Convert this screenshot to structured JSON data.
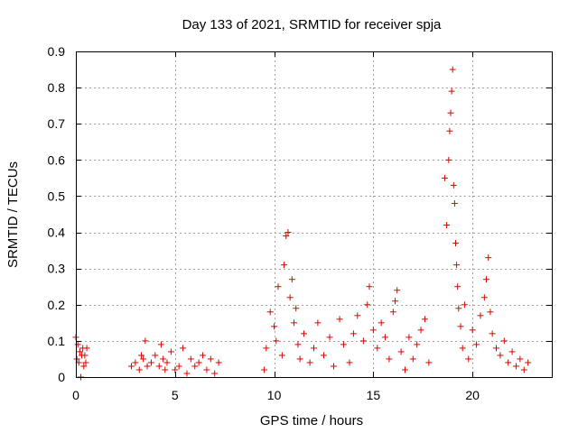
{
  "chart_data": {
    "type": "scatter",
    "title": "Day 133 of 2021, SRMTID for receiver spja",
    "xlabel": "GPS time / hours",
    "ylabel": "SRMTID / TECUs",
    "xlim": [
      0,
      24
    ],
    "ylim": [
      0,
      0.9
    ],
    "xticks": [
      0,
      5,
      10,
      15,
      20
    ],
    "xtick_labels": [
      "0",
      "5",
      "10",
      "15",
      "20"
    ],
    "yticks": [
      0,
      0.1,
      0.2,
      0.3,
      0.4,
      0.5,
      0.6,
      0.7,
      0.8,
      0.9
    ],
    "ytick_labels": [
      "0",
      "0.1",
      "0.2",
      "0.3",
      "0.4",
      "0.5",
      "0.6",
      "0.7",
      "0.8",
      "0.9"
    ],
    "grid": true,
    "marker": "+",
    "series": [
      {
        "name": "SRMTID",
        "color": "#e00000",
        "x": [
          0.0,
          0.05,
          0.1,
          0.15,
          0.2,
          0.25,
          0.3,
          0.35,
          0.4,
          0.45,
          0.5,
          0.55,
          2.8,
          3.0,
          3.2,
          3.3,
          3.4,
          3.5,
          3.6,
          3.8,
          4.0,
          4.2,
          4.3,
          4.4,
          4.5,
          4.6,
          4.8,
          5.0,
          5.2,
          5.4,
          5.6,
          5.8,
          6.0,
          6.2,
          6.4,
          6.6,
          6.8,
          7.0,
          7.2,
          9.5,
          9.6,
          9.8,
          10.0,
          10.1,
          10.2,
          10.4,
          10.5,
          10.6,
          10.7,
          10.8,
          10.9,
          11.0,
          11.1,
          11.2,
          11.3,
          11.5,
          11.8,
          12.0,
          12.2,
          12.5,
          12.8,
          13.0,
          13.3,
          13.5,
          13.8,
          14.0,
          14.2,
          14.5,
          14.7,
          14.8,
          15.0,
          15.2,
          15.4,
          15.6,
          15.8,
          16.0,
          16.1,
          16.2,
          16.4,
          16.6,
          16.8,
          17.0,
          17.2,
          17.4,
          17.6,
          17.8,
          18.6,
          18.7,
          18.8,
          18.85,
          18.9,
          18.95,
          19.0,
          19.05,
          19.1,
          19.15,
          19.2,
          19.25,
          19.3,
          19.4,
          19.5,
          19.6,
          19.8,
          20.0,
          20.2,
          20.4,
          20.6,
          20.7,
          20.8,
          20.9,
          21.0,
          21.2,
          21.4,
          21.6,
          21.8,
          22.0,
          22.2,
          22.4,
          22.6,
          22.8
        ],
        "y": [
          0.11,
          0.05,
          0.09,
          0.04,
          0.07,
          0.0,
          0.06,
          0.08,
          0.03,
          0.06,
          0.04,
          0.08,
          0.03,
          0.04,
          0.02,
          0.06,
          0.05,
          0.1,
          0.03,
          0.04,
          0.06,
          0.03,
          0.09,
          0.05,
          0.02,
          0.04,
          0.07,
          0.02,
          0.03,
          0.08,
          0.01,
          0.05,
          0.03,
          0.04,
          0.06,
          0.02,
          0.05,
          0.01,
          0.04,
          0.02,
          0.08,
          0.18,
          0.14,
          0.1,
          0.25,
          0.06,
          0.31,
          0.39,
          0.4,
          0.22,
          0.27,
          0.15,
          0.19,
          0.09,
          0.05,
          0.12,
          0.04,
          0.08,
          0.15,
          0.06,
          0.11,
          0.03,
          0.16,
          0.09,
          0.04,
          0.12,
          0.17,
          0.1,
          0.2,
          0.25,
          0.13,
          0.08,
          0.15,
          0.11,
          0.05,
          0.18,
          0.21,
          0.24,
          0.07,
          0.02,
          0.11,
          0.05,
          0.09,
          0.13,
          0.16,
          0.04,
          0.55,
          0.42,
          0.6,
          0.68,
          0.73,
          0.79,
          0.85,
          0.53,
          0.48,
          0.37,
          0.31,
          0.25,
          0.19,
          0.14,
          0.08,
          0.2,
          0.05,
          0.13,
          0.09,
          0.17,
          0.22,
          0.27,
          0.33,
          0.18,
          0.12,
          0.08,
          0.06,
          0.1,
          0.04,
          0.07,
          0.03,
          0.05,
          0.02,
          0.04
        ]
      }
    ]
  }
}
